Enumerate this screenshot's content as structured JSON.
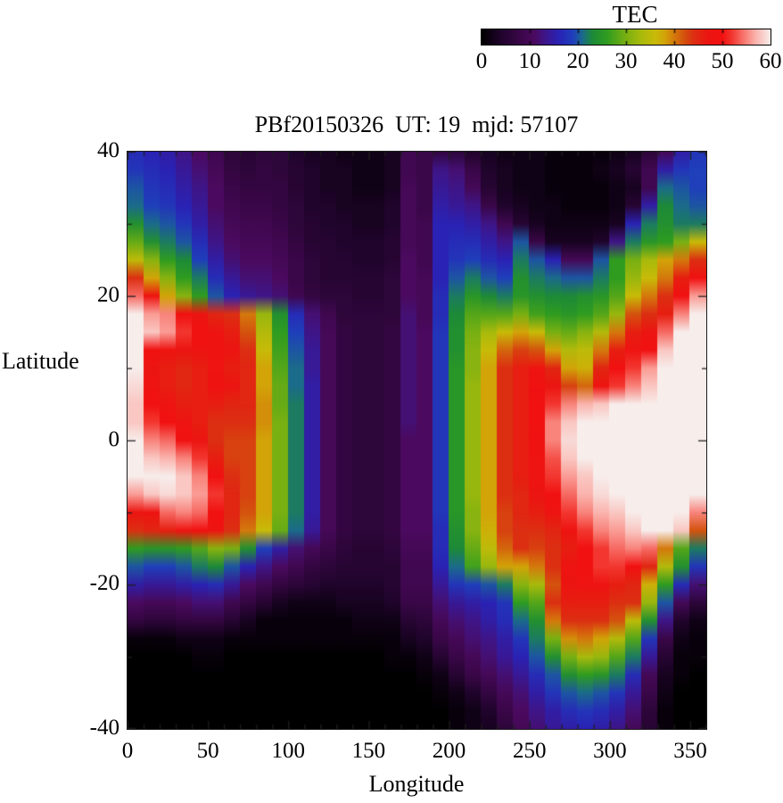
{
  "colorbar": {
    "title": "TEC",
    "tick_values": [
      0,
      10,
      20,
      30,
      40,
      50,
      60
    ],
    "notch_values": [
      10,
      20,
      30,
      40,
      50
    ],
    "min": 0,
    "max": 60
  },
  "plot": {
    "title": "PBf20150326  UT: 19  mjd: 57107",
    "xlabel": "Longitude",
    "ylabel": "Latitude",
    "x_ticks": [
      0,
      50,
      100,
      150,
      200,
      250,
      300,
      350
    ],
    "y_ticks": [
      40,
      20,
      0,
      -20,
      -40
    ],
    "x_minor_step": 10,
    "y_minor_step": 10,
    "x_range": [
      0,
      360
    ],
    "y_range": [
      -40,
      40
    ],
    "background": "#ffffff",
    "frame_color": "#1a1a1a"
  },
  "chart_data": {
    "type": "heatmap",
    "title": "PBf20150326  UT: 19  mjd: 57107",
    "xlabel": "Longitude",
    "ylabel": "Latitude",
    "colorbar_label": "TEC",
    "value_range": [
      0,
      60
    ],
    "x_range": [
      0,
      360
    ],
    "y_range": [
      -40,
      40
    ],
    "lon_step_deg": 10,
    "lat_step_deg": 2.5,
    "lons": [
      0,
      10,
      20,
      30,
      40,
      50,
      60,
      70,
      80,
      90,
      100,
      110,
      120,
      130,
      140,
      150,
      160,
      170,
      180,
      190,
      200,
      210,
      220,
      230,
      240,
      250,
      260,
      270,
      280,
      290,
      300,
      310,
      320,
      330,
      340,
      350
    ],
    "lats": [
      40,
      37.5,
      35,
      32.5,
      30,
      27.5,
      25,
      22.5,
      20,
      17.5,
      15,
      12.5,
      10,
      7.5,
      5,
      2.5,
      0,
      -2.5,
      -5,
      -7.5,
      -10,
      -12.5,
      -15,
      -17.5,
      -20,
      -22.5,
      -25,
      -27.5,
      -30,
      -32.5,
      -35,
      -37.5,
      -40
    ],
    "palette": [
      [
        0,
        "#000000"
      ],
      [
        4,
        "#20042c"
      ],
      [
        8,
        "#3a0748"
      ],
      [
        11,
        "#4b0a5f"
      ],
      [
        13,
        "#3f1587"
      ],
      [
        16,
        "#2a22b4"
      ],
      [
        19,
        "#1f3fbb"
      ],
      [
        21,
        "#1b6b8a"
      ],
      [
        23,
        "#1d8a38"
      ],
      [
        26,
        "#2f9c20"
      ],
      [
        30,
        "#78b012"
      ],
      [
        33,
        "#a8ba0c"
      ],
      [
        36,
        "#c8bb08"
      ],
      [
        38,
        "#d2a408"
      ],
      [
        40,
        "#d4790c"
      ],
      [
        42,
        "#d4530e"
      ],
      [
        44,
        "#dc2f12"
      ],
      [
        47,
        "#ec1511"
      ],
      [
        50,
        "#f11111"
      ],
      [
        52,
        "#f33730"
      ],
      [
        55,
        "#f8847c"
      ],
      [
        57,
        "#fbb4ae"
      ],
      [
        60,
        "#f7edeb"
      ]
    ],
    "grid_rows_lat_40_to_minus40": [
      [
        17,
        16,
        15,
        13,
        11,
        9,
        6,
        5,
        6,
        6,
        4,
        3,
        3,
        2,
        2,
        2,
        3,
        9,
        8,
        7,
        6,
        4,
        3,
        2,
        2,
        2,
        1,
        1,
        1,
        1,
        2,
        3,
        6,
        10,
        15,
        18
      ],
      [
        18,
        17,
        16,
        14,
        12,
        10,
        7,
        6,
        7,
        6,
        5,
        4,
        3,
        3,
        2,
        2,
        3,
        9,
        8,
        13,
        12,
        8,
        4,
        3,
        2,
        2,
        1,
        1,
        1,
        2,
        3,
        5,
        9,
        15,
        18,
        19
      ],
      [
        20,
        18,
        17,
        15,
        13,
        11,
        8,
        7,
        7,
        7,
        5,
        4,
        3,
        3,
        2,
        2,
        3,
        10,
        8,
        14,
        13,
        10,
        5,
        3,
        2,
        2,
        1,
        1,
        1,
        1,
        2,
        3,
        9,
        21,
        20,
        19
      ],
      [
        21,
        19,
        18,
        16,
        14,
        11,
        9,
        8,
        8,
        7,
        6,
        4,
        4,
        3,
        3,
        3,
        4,
        10,
        8,
        15,
        14,
        13,
        8,
        4,
        3,
        2,
        2,
        1,
        1,
        1,
        2,
        5,
        15,
        23,
        21,
        20
      ],
      [
        24,
        21,
        20,
        18,
        15,
        12,
        10,
        9,
        9,
        8,
        6,
        5,
        4,
        4,
        3,
        3,
        4,
        10,
        9,
        16,
        16,
        15,
        13,
        9,
        5,
        3,
        2,
        2,
        2,
        2,
        3,
        16,
        22,
        24,
        22,
        22
      ],
      [
        29,
        24,
        22,
        20,
        17,
        13,
        11,
        10,
        10,
        9,
        7,
        5,
        5,
        4,
        4,
        4,
        5,
        10,
        9,
        16,
        17,
        17,
        15,
        13,
        20,
        8,
        3,
        3,
        3,
        4,
        13,
        22,
        25,
        26,
        30,
        36
      ],
      [
        35,
        31,
        26,
        23,
        19,
        15,
        12,
        11,
        11,
        10,
        8,
        6,
        5,
        5,
        4,
        4,
        5,
        11,
        9,
        16,
        18,
        19,
        17,
        16,
        22,
        20,
        16,
        10,
        10,
        20,
        26,
        30,
        33,
        38,
        40,
        44
      ],
      [
        44,
        38,
        31,
        26,
        22,
        17,
        14,
        12,
        12,
        11,
        8,
        6,
        5,
        5,
        5,
        5,
        6,
        11,
        10,
        16,
        20,
        22,
        20,
        19,
        24,
        22,
        21,
        20,
        20,
        22,
        26,
        32,
        36,
        40,
        46,
        50
      ],
      [
        54,
        48,
        38,
        31,
        26,
        20,
        16,
        14,
        13,
        12,
        9,
        7,
        6,
        6,
        5,
        5,
        6,
        11,
        10,
        17,
        22,
        25,
        23,
        22,
        25,
        24,
        23,
        23,
        24,
        25,
        28,
        36,
        40,
        44,
        50,
        56
      ],
      [
        60,
        56,
        55,
        50,
        47,
        45,
        44,
        40,
        32,
        24,
        17,
        12,
        9,
        6,
        6,
        6,
        6,
        12,
        10,
        17,
        23,
        28,
        28,
        28,
        30,
        27,
        26,
        25,
        26,
        28,
        32,
        42,
        44,
        46,
        55,
        60
      ],
      [
        62,
        58,
        56,
        52,
        50,
        48,
        46,
        42,
        34,
        26,
        19,
        13,
        10,
        7,
        6,
        6,
        7,
        12,
        11,
        18,
        24,
        30,
        33,
        36,
        38,
        36,
        30,
        29,
        31,
        34,
        40,
        46,
        47,
        54,
        60,
        62
      ],
      [
        61,
        50,
        48,
        47,
        48,
        49,
        47,
        44,
        36,
        27,
        20,
        14,
        10,
        7,
        6,
        6,
        7,
        12,
        11,
        18,
        24,
        31,
        36,
        41,
        43,
        42,
        38,
        34,
        35,
        40,
        46,
        48,
        50,
        58,
        61,
        62
      ],
      [
        60,
        47,
        46,
        45,
        46,
        48,
        46,
        45,
        38,
        28,
        21,
        14,
        10,
        7,
        6,
        6,
        7,
        12,
        11,
        18,
        25,
        31,
        38,
        44,
        46,
        48,
        45,
        38,
        37,
        45,
        50,
        52,
        56,
        60,
        62,
        62
      ],
      [
        59,
        48,
        46,
        45,
        46,
        49,
        47,
        45,
        38,
        29,
        21,
        15,
        10,
        7,
        6,
        6,
        7,
        12,
        11,
        18,
        25,
        32,
        38,
        44,
        46,
        49,
        47,
        43,
        41,
        48,
        52,
        55,
        58,
        61,
        62,
        62
      ],
      [
        58,
        50,
        48,
        46,
        46,
        46,
        45,
        45,
        39,
        29,
        22,
        15,
        10,
        7,
        6,
        6,
        7,
        12,
        11,
        18,
        25,
        32,
        38,
        44,
        46,
        50,
        52,
        55,
        57,
        58,
        60,
        61,
        62,
        62,
        62,
        62
      ],
      [
        58,
        52,
        50,
        48,
        46,
        44,
        44,
        44,
        39,
        30,
        22,
        15,
        10,
        7,
        6,
        6,
        7,
        12,
        11,
        18,
        25,
        32,
        38,
        44,
        46,
        50,
        55,
        58,
        60,
        60,
        61,
        62,
        62,
        62,
        62,
        62
      ],
      [
        60,
        55,
        54,
        50,
        47,
        44,
        43,
        43,
        38,
        30,
        22,
        15,
        10,
        7,
        6,
        6,
        7,
        11,
        11,
        18,
        25,
        32,
        38,
        44,
        46,
        49,
        55,
        59,
        61,
        61,
        62,
        62,
        62,
        62,
        62,
        62
      ],
      [
        61,
        58,
        57,
        55,
        52,
        46,
        43,
        43,
        38,
        30,
        22,
        15,
        10,
        7,
        6,
        6,
        7,
        11,
        11,
        18,
        25,
        32,
        38,
        44,
        46,
        48,
        53,
        58,
        60,
        61,
        62,
        62,
        62,
        62,
        62,
        62
      ],
      [
        61,
        60,
        60,
        58,
        55,
        50,
        44,
        43,
        38,
        30,
        22,
        15,
        10,
        7,
        6,
        6,
        7,
        11,
        11,
        18,
        25,
        32,
        38,
        44,
        46,
        48,
        52,
        56,
        58,
        60,
        61,
        62,
        62,
        62,
        62,
        62
      ],
      [
        56,
        58,
        59,
        58,
        56,
        52,
        45,
        43,
        38,
        30,
        22,
        15,
        10,
        7,
        6,
        6,
        7,
        11,
        11,
        18,
        25,
        32,
        38,
        44,
        45,
        47,
        50,
        54,
        57,
        59,
        60,
        61,
        62,
        62,
        62,
        60
      ],
      [
        47,
        48,
        54,
        55,
        54,
        50,
        45,
        42,
        38,
        30,
        22,
        15,
        10,
        7,
        6,
        6,
        7,
        11,
        11,
        18,
        25,
        31,
        38,
        43,
        45,
        46,
        48,
        52,
        55,
        57,
        58,
        60,
        61,
        62,
        62,
        55
      ],
      [
        44,
        45,
        46,
        48,
        50,
        48,
        44,
        40,
        36,
        29,
        21,
        14,
        10,
        7,
        6,
        6,
        7,
        11,
        11,
        17,
        24,
        31,
        37,
        43,
        44,
        44,
        45,
        48,
        52,
        55,
        56,
        58,
        60,
        62,
        58,
        42
      ],
      [
        26,
        25,
        25,
        26,
        28,
        31,
        30,
        24,
        19,
        15,
        12,
        10,
        8,
        6,
        5,
        5,
        6,
        10,
        10,
        17,
        23,
        29,
        35,
        41,
        44,
        43,
        44,
        46,
        50,
        52,
        54,
        55,
        54,
        40,
        28,
        22
      ],
      [
        20,
        19,
        19,
        20,
        22,
        23,
        20,
        16,
        13,
        11,
        9,
        7,
        6,
        5,
        5,
        5,
        5,
        9,
        9,
        16,
        21,
        27,
        32,
        38,
        38,
        40,
        44,
        48,
        50,
        52,
        52,
        50,
        45,
        34,
        24,
        18
      ],
      [
        15,
        14,
        14,
        15,
        16,
        17,
        14,
        11,
        9,
        7,
        6,
        5,
        4,
        4,
        4,
        4,
        5,
        9,
        9,
        14,
        18,
        19,
        20,
        22,
        31,
        33,
        42,
        47,
        48,
        48,
        46,
        45,
        37,
        26,
        17,
        12
      ],
      [
        11,
        10,
        10,
        11,
        12,
        12,
        9,
        7,
        5,
        3,
        2,
        2,
        2,
        3,
        3,
        3,
        4,
        8,
        8,
        12,
        14,
        15,
        16,
        18,
        26,
        28,
        44,
        46,
        46,
        46,
        44,
        44,
        32,
        20,
        10,
        6
      ],
      [
        7,
        6,
        6,
        7,
        7,
        7,
        5,
        3,
        1,
        1,
        1,
        1,
        1,
        1,
        2,
        2,
        2,
        5,
        6,
        10,
        12,
        13,
        15,
        17,
        21,
        24,
        40,
        44,
        44,
        44,
        42,
        35,
        24,
        13,
        4,
        2
      ],
      [
        1,
        1,
        1,
        2,
        2,
        2,
        1,
        1,
        1,
        1,
        1,
        1,
        1,
        1,
        1,
        1,
        1,
        3,
        4,
        8,
        10,
        12,
        13,
        15,
        18,
        22,
        30,
        39,
        40,
        38,
        34,
        28,
        18,
        8,
        2,
        1
      ],
      [
        0,
        0,
        0,
        0,
        1,
        1,
        0,
        0,
        0,
        0,
        0,
        0,
        0,
        0,
        0,
        0,
        1,
        1,
        2,
        5,
        8,
        10,
        12,
        14,
        16,
        20,
        24,
        30,
        33,
        32,
        28,
        22,
        14,
        5,
        1,
        1
      ],
      [
        0,
        0,
        0,
        0,
        0,
        0,
        0,
        0,
        0,
        0,
        0,
        0,
        0,
        0,
        0,
        0,
        0,
        0,
        1,
        2,
        5,
        8,
        10,
        12,
        14,
        17,
        20,
        24,
        26,
        25,
        22,
        17,
        10,
        3,
        1,
        0
      ],
      [
        0,
        0,
        0,
        0,
        0,
        0,
        0,
        0,
        0,
        0,
        0,
        0,
        0,
        0,
        0,
        0,
        0,
        0,
        0,
        1,
        2,
        4,
        7,
        10,
        12,
        15,
        18,
        20,
        21,
        20,
        18,
        14,
        8,
        2,
        0,
        0
      ],
      [
        0,
        0,
        0,
        0,
        0,
        0,
        0,
        0,
        0,
        0,
        0,
        0,
        0,
        0,
        0,
        0,
        0,
        0,
        0,
        0,
        1,
        2,
        4,
        8,
        11,
        13,
        15,
        17,
        18,
        17,
        15,
        12,
        6,
        1,
        0,
        0
      ],
      [
        0,
        0,
        0,
        0,
        0,
        0,
        0,
        0,
        0,
        0,
        0,
        0,
        0,
        0,
        0,
        0,
        0,
        0,
        0,
        0,
        1,
        2,
        3,
        6,
        10,
        12,
        14,
        15,
        16,
        15,
        13,
        10,
        5,
        1,
        0,
        0
      ]
    ]
  }
}
